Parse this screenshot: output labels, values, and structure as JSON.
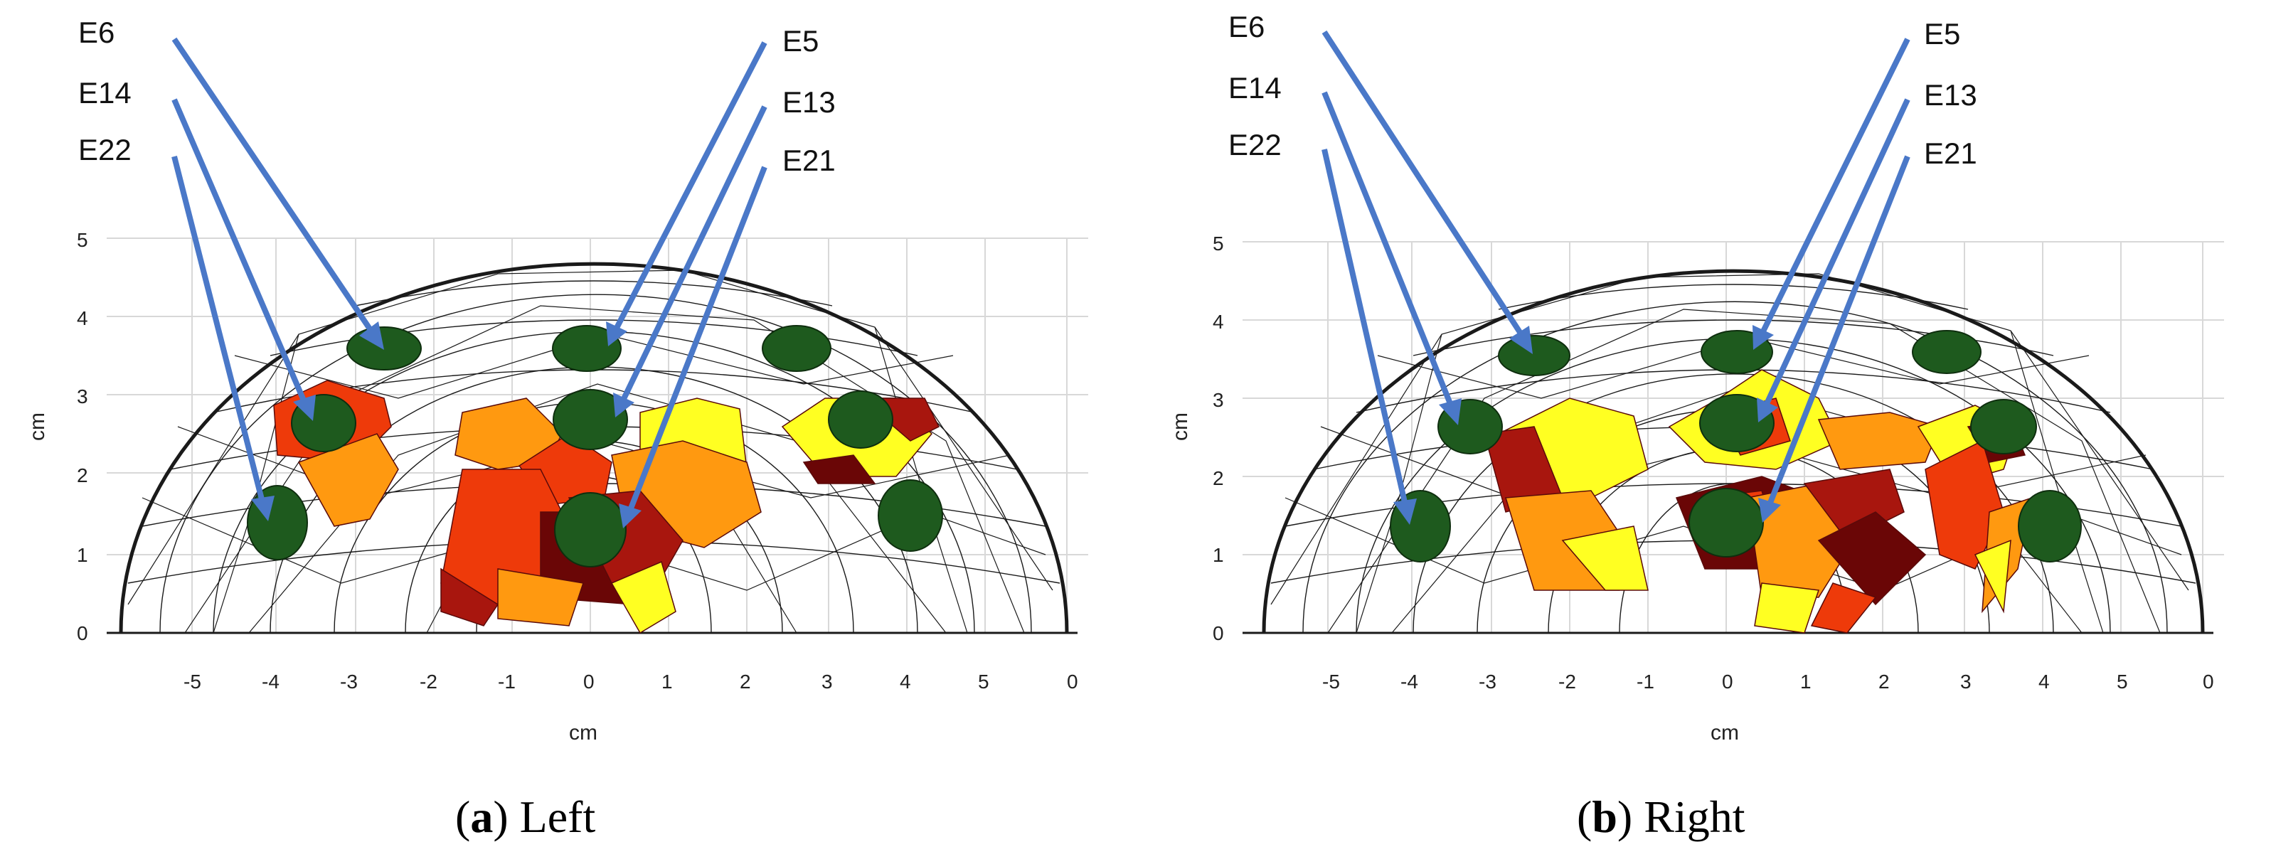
{
  "panels": [
    {
      "id": "a",
      "caption_letter": "a",
      "caption_text": "Left",
      "electrode_labels_left": [
        "E6",
        "E14",
        "E22"
      ],
      "electrode_labels_right": [
        "E5",
        "E13",
        "E21"
      ],
      "x_axis_label": "cm",
      "y_axis_label": "cm",
      "x_ticks": [
        "-5",
        "-4",
        "-3",
        "-2",
        "-1",
        "0",
        "1",
        "2",
        "3",
        "4",
        "5",
        "0"
      ],
      "y_ticks": [
        "0",
        "1",
        "2",
        "3",
        "4",
        "5"
      ]
    },
    {
      "id": "b",
      "caption_letter": "b",
      "caption_text": "Right",
      "electrode_labels_left": [
        "E6",
        "E14",
        "E22"
      ],
      "electrode_labels_right": [
        "E5",
        "E13",
        "E21"
      ],
      "x_axis_label": "cm",
      "y_axis_label": "cm",
      "x_ticks": [
        "-5",
        "-4",
        "-3",
        "-2",
        "-1",
        "0",
        "1",
        "2",
        "3",
        "4",
        "5",
        "0"
      ],
      "y_ticks": [
        "0",
        "1",
        "2",
        "3",
        "4",
        "5"
      ]
    }
  ],
  "colors": {
    "mesh": "#1a1a1a",
    "electrode": "#1e5a1e",
    "arrow": "#4a78c8",
    "grid": "#d8d8d8",
    "heat": [
      "#ffff22",
      "#ff9910",
      "#ee3a0a",
      "#a8160e",
      "#6a0606"
    ]
  }
}
